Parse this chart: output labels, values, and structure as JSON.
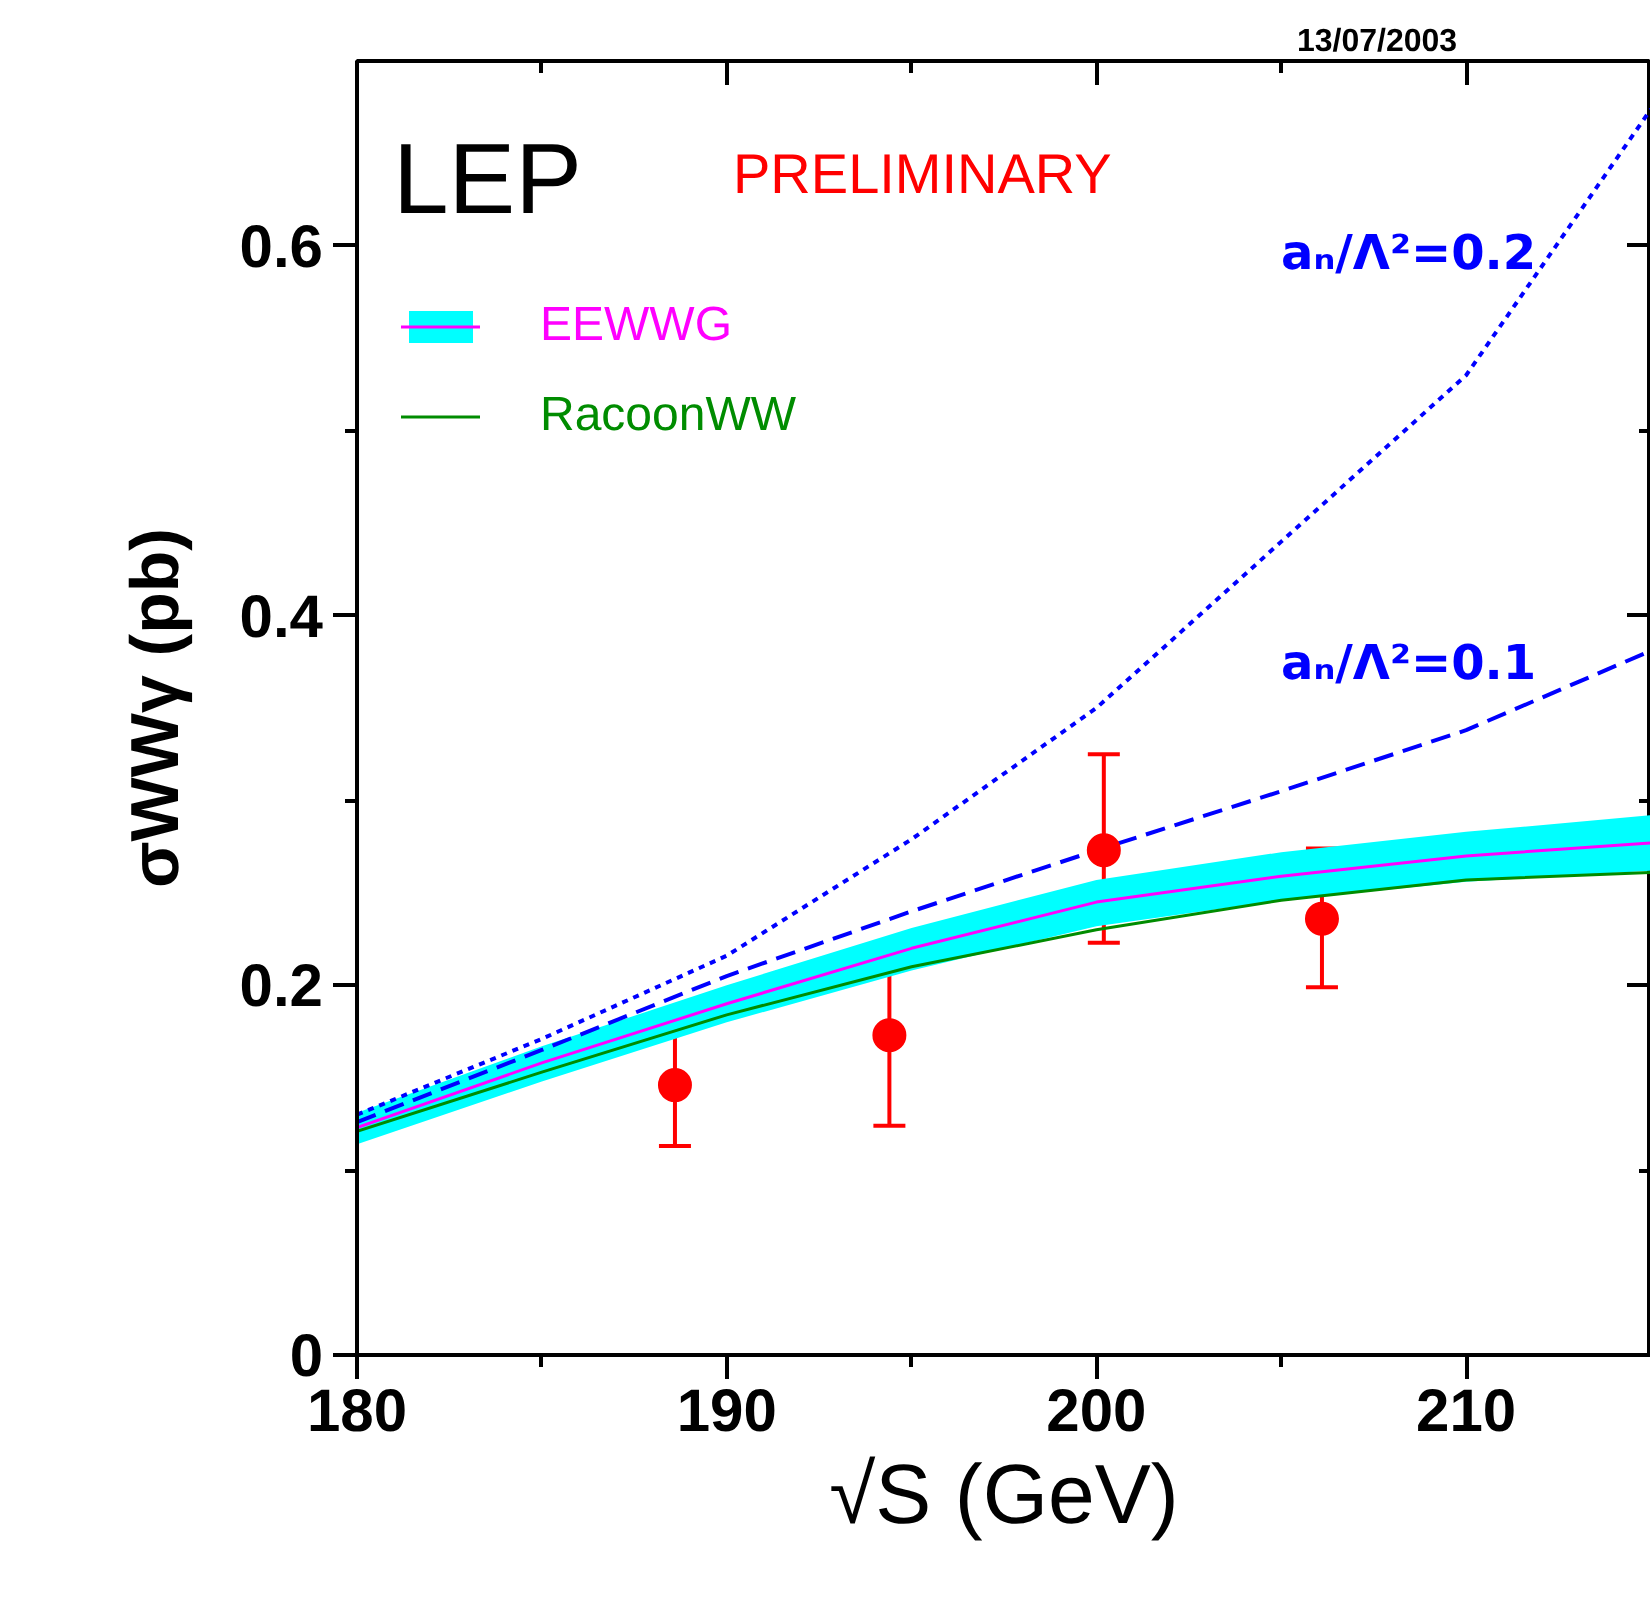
{
  "chart_data": {
    "type": "line",
    "xlabel": "√S (GeV)",
    "ylabel": "σWWγ (pb)",
    "xlim": [
      180,
      215
    ],
    "ylim": [
      0,
      0.7
    ],
    "xticks": [
      180,
      {
        "value": 185,
        "label": null
      },
      190,
      {
        "value": 195,
        "label": null
      },
      200,
      {
        "value": 205,
        "label": null
      },
      210
    ],
    "yticks": [
      0,
      {
        "value": 0.1,
        "label": null
      },
      0.2,
      {
        "value": 0.3,
        "label": null
      },
      0.4,
      {
        "value": 0.5,
        "label": null
      },
      0.6
    ],
    "grid": false,
    "legend": "top left",
    "x": [
      180,
      185,
      190,
      195,
      200,
      205,
      210,
      215
    ],
    "series": [
      {
        "name": "EEWWG",
        "color": "#ff00ff",
        "values": [
          0.123,
          0.158,
          0.19,
          0.22,
          0.245,
          0.259,
          0.27,
          0.277
        ],
        "lower": [
          0.114,
          0.148,
          0.18,
          0.208,
          0.232,
          0.246,
          0.256,
          0.262
        ],
        "upper": [
          0.131,
          0.167,
          0.2,
          0.231,
          0.257,
          0.272,
          0.283,
          0.292
        ]
      },
      {
        "name": "RacoonWW",
        "color": "#008c00",
        "values": [
          0.121,
          0.153,
          0.184,
          0.21,
          0.23,
          0.246,
          0.257,
          0.261
        ]
      },
      {
        "color": "#0000ff",
        "line_style": "dashed",
        "values": [
          0.126,
          0.165,
          0.205,
          0.24,
          0.273,
          0.305,
          0.338,
          0.381
        ]
      },
      {
        "color": "#0000ff",
        "line_style": "dotted",
        "values": [
          0.13,
          0.171,
          0.216,
          0.279,
          0.35,
          0.44,
          0.53,
          0.674
        ]
      },
      {
        "type": "scatter",
        "color": "#ff0000",
        "marker": "circle",
        "x": [
          188.6,
          194.4,
          200.2,
          206.1
        ],
        "values": [
          0.146,
          0.173,
          0.273,
          0.236
        ],
        "errors": [
          [
            0.113,
            0.18
          ],
          [
            0.124,
            0.219
          ],
          [
            0.223,
            0.325
          ],
          [
            0.199,
            0.274
          ]
        ]
      }
    ],
    "annotations": [
      "LEP",
      "PRELIMINARY",
      "13/07/2003",
      "aₙ/Λ²=0.2",
      "aₙ/Λ²=0.1"
    ]
  }
}
